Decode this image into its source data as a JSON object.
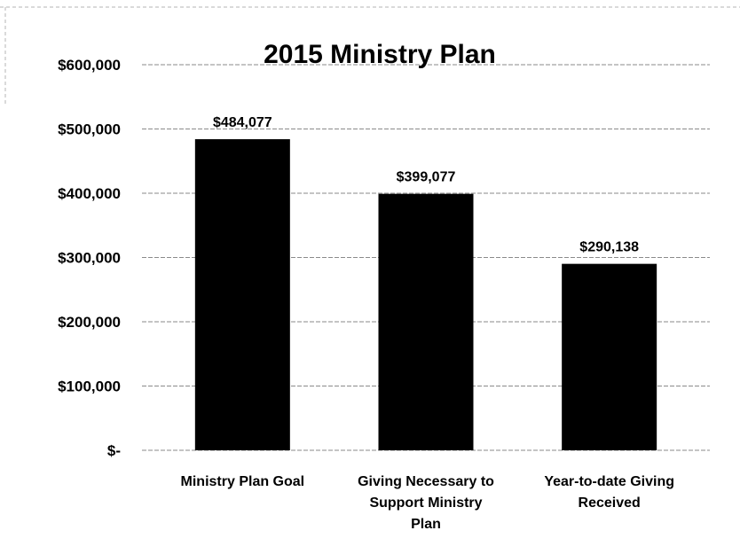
{
  "chart_data": {
    "type": "bar",
    "title": "2015 Ministry Plan",
    "categories": [
      [
        "Ministry Plan Goal"
      ],
      [
        "Giving Necessary to",
        "Support Ministry",
        "Plan"
      ],
      [
        "Year-to-date Giving",
        "Received"
      ]
    ],
    "values": [
      484077,
      399077,
      290138
    ],
    "data_labels": [
      "$484,077",
      "$399,077",
      "$290,138"
    ],
    "y_ticks": [
      {
        "value": 0,
        "label": "$-"
      },
      {
        "value": 100000,
        "label": "$100,000"
      },
      {
        "value": 200000,
        "label": "$200,000"
      },
      {
        "value": 300000,
        "label": "$300,000"
      },
      {
        "value": 400000,
        "label": "$400,000"
      },
      {
        "value": 500000,
        "label": "$500,000"
      },
      {
        "value": 600000,
        "label": "$600,000"
      }
    ],
    "ylim": [
      0,
      600000
    ],
    "xlabel": "",
    "ylabel": "",
    "grid": true,
    "legend": "none",
    "bar_color": "#000000",
    "grid_color": "#8a8a8a"
  }
}
